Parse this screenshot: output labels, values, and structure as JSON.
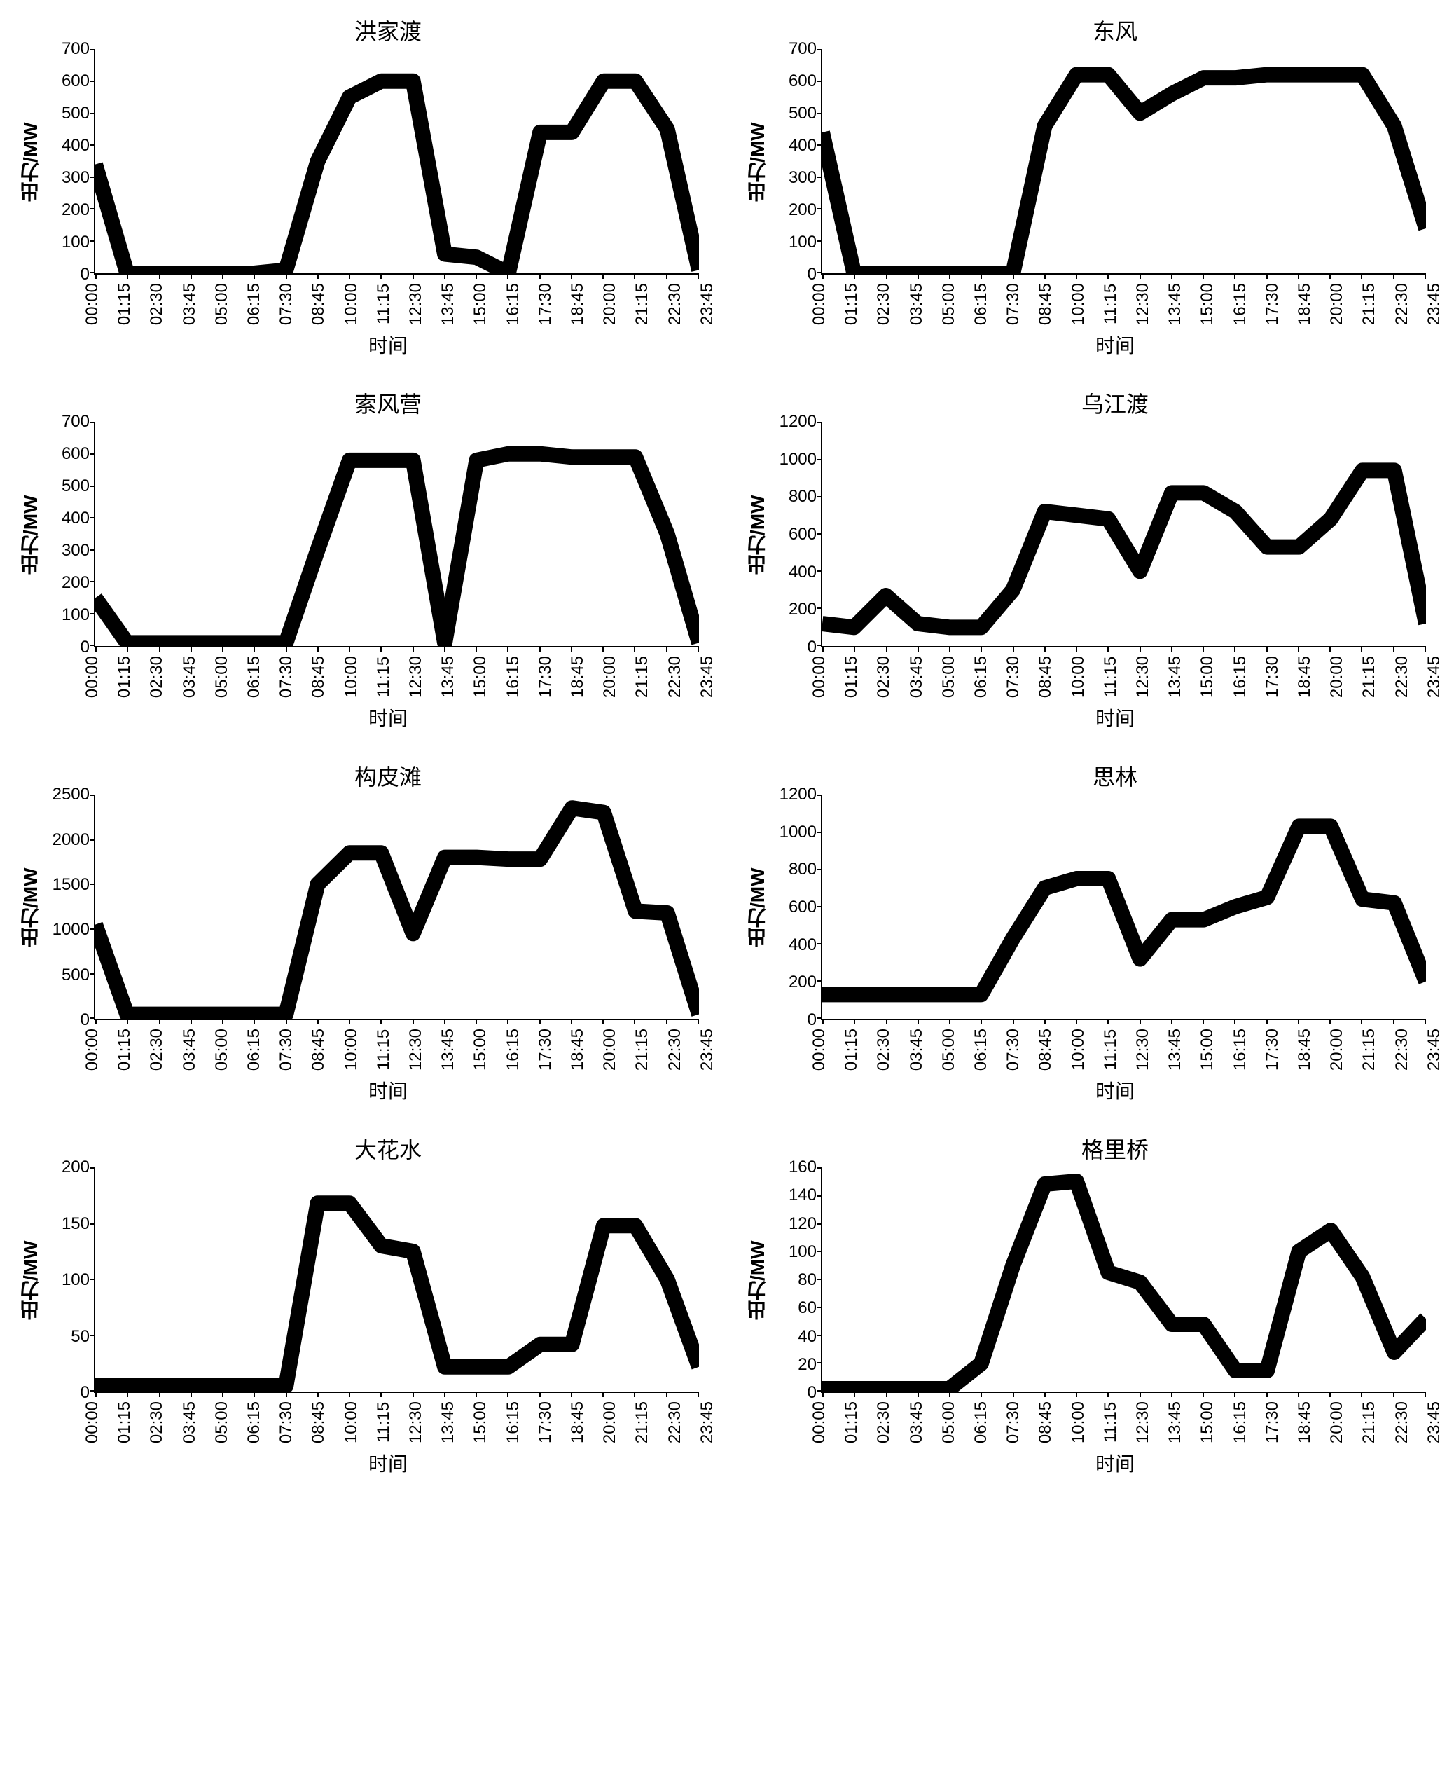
{
  "global": {
    "xlabel": "时间",
    "ylabel": "出力/MW",
    "x_categories": [
      "00:00",
      "01:15",
      "02:30",
      "03:45",
      "05:00",
      "06:15",
      "07:30",
      "08:45",
      "10:00",
      "11:15",
      "12:30",
      "13:45",
      "15:00",
      "16:15",
      "17:30",
      "18:45",
      "20:00",
      "21:15",
      "22:30",
      "23:45"
    ],
    "line_color": "#000000",
    "line_width": 6,
    "background": "#ffffff",
    "title_fontsize": 32,
    "label_fontsize": 28,
    "tick_fontsize": 24
  },
  "charts": [
    {
      "title": "洪家渡",
      "ylim": [
        0,
        700
      ],
      "ytick_step": 100,
      "values": [
        340,
        0,
        0,
        0,
        0,
        0,
        10,
        350,
        550,
        600,
        600,
        60,
        50,
        0,
        440,
        440,
        600,
        600,
        450,
        10
      ]
    },
    {
      "title": "东风",
      "ylim": [
        0,
        700
      ],
      "ytick_step": 100,
      "values": [
        440,
        0,
        0,
        0,
        0,
        0,
        0,
        460,
        620,
        620,
        500,
        560,
        610,
        610,
        620,
        620,
        620,
        620,
        460,
        140
      ]
    },
    {
      "title": "索风营",
      "ylim": [
        0,
        700
      ],
      "ytick_step": 100,
      "values": [
        150,
        10,
        10,
        10,
        10,
        10,
        10,
        300,
        580,
        580,
        580,
        10,
        580,
        600,
        600,
        590,
        590,
        590,
        350,
        10
      ]
    },
    {
      "title": "乌江渡",
      "ylim": [
        0,
        1200
      ],
      "ytick_step": 200,
      "values": [
        120,
        100,
        270,
        120,
        100,
        100,
        300,
        720,
        700,
        680,
        400,
        820,
        820,
        720,
        530,
        530,
        680,
        940,
        940,
        120
      ]
    },
    {
      "title": "构皮滩",
      "ylim": [
        0,
        2500
      ],
      "ytick_step": 500,
      "values": [
        1050,
        50,
        50,
        50,
        50,
        50,
        50,
        1500,
        1850,
        1850,
        950,
        1800,
        1800,
        1780,
        1780,
        2350,
        2300,
        1200,
        1180,
        50
      ]
    },
    {
      "title": "思林",
      "ylim": [
        0,
        1200
      ],
      "ytick_step": 200,
      "values": [
        130,
        130,
        130,
        130,
        130,
        130,
        430,
        700,
        750,
        750,
        320,
        530,
        530,
        600,
        650,
        1030,
        1030,
        640,
        620,
        200
      ]
    },
    {
      "title": "大花水",
      "ylim": [
        0,
        200
      ],
      "ytick_step": 50,
      "values": [
        5,
        5,
        5,
        5,
        5,
        5,
        5,
        168,
        168,
        130,
        125,
        22,
        22,
        22,
        42,
        42,
        148,
        148,
        100,
        22
      ]
    },
    {
      "title": "格里桥",
      "ylim": [
        0,
        160
      ],
      "ytick_step": 20,
      "values": [
        2,
        2,
        2,
        2,
        2,
        20,
        90,
        148,
        150,
        85,
        78,
        48,
        48,
        15,
        15,
        100,
        115,
        82,
        28,
        52
      ]
    }
  ]
}
